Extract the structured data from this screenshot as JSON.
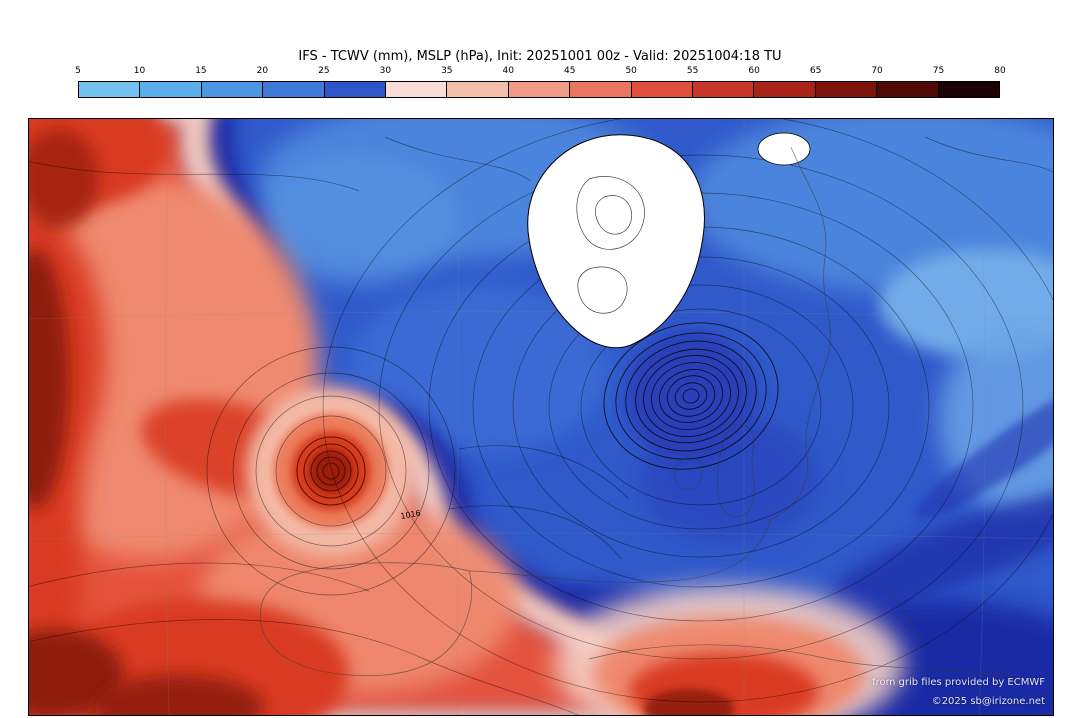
{
  "title": "IFS - TCWV (mm), MSLP (hPa), Init: 20251001 00z - Valid: 20251004:18 TU",
  "colorbar": {
    "unit": "mm",
    "ticks": [
      "5",
      "10",
      "15",
      "20",
      "25",
      "30",
      "35",
      "40",
      "45",
      "50",
      "55",
      "60",
      "65",
      "70",
      "75",
      "80"
    ],
    "colors": [
      "#74c1ef",
      "#5aaeea",
      "#4d97e2",
      "#3f7ad8",
      "#2f55cb",
      "#f7ddd6",
      "#f5bfae",
      "#f09c86",
      "#ea7560",
      "#e04f3c",
      "#c93526",
      "#a82318",
      "#7e150d",
      "#4f0a05",
      "#1a0302"
    ]
  },
  "map": {
    "contour_labels": [
      "1016"
    ],
    "watermark_line1": "from grib files provided by ECMWF",
    "watermark_line2": "©2025 sb@irizone.net"
  },
  "chart_data": {
    "type": "heatmap",
    "title": "IFS - TCWV (mm), MSLP (hPa), Init: 20251001 00z - Valid: 20251004:18 TU",
    "model": "IFS",
    "shaded_field": "TCWV (mm)",
    "contour_field": "MSLP (hPa)",
    "init": "20251001 00z",
    "valid": "20251004:18 TU",
    "legend_position": "top",
    "colorbar_ticks": [
      5,
      10,
      15,
      20,
      25,
      30,
      35,
      40,
      45,
      50,
      55,
      60,
      65,
      70,
      75,
      80
    ],
    "colorbar_unit": "mm",
    "colorbar_colors": [
      "#74c1ef",
      "#5aaeea",
      "#4d97e2",
      "#3f7ad8",
      "#2f55cb",
      "#f7ddd6",
      "#f5bfae",
      "#f09c86",
      "#ea7560",
      "#e04f3c",
      "#c93526",
      "#a82318",
      "#7e150d",
      "#4f0a05",
      "#1a0302"
    ],
    "contour_labels": [
      "1016"
    ],
    "visible_features": [
      {
        "name": "high-TCWV-plume-west-atlantic",
        "approx_tcwv_mm": "50-80",
        "location": "left edge of map"
      },
      {
        "name": "spiral-cyclone-with-moist-core",
        "approx_tcwv_mm": "45-60",
        "location": "center-left, concentric MSLP contours"
      },
      {
        "name": "deep-low-tightly-packed-isobars",
        "approx_tcwv_mm": "20-30",
        "location": "center, southeast of white landmass"
      },
      {
        "name": "dry-air-mass",
        "approx_tcwv_mm": "10-25",
        "location": "upper right / northern half"
      },
      {
        "name": "white-landmass-no-shading-with-contours",
        "location": "top center"
      },
      {
        "name": "moist-band-mediterranean",
        "approx_tcwv_mm": "35-55",
        "location": "bottom center"
      }
    ]
  }
}
